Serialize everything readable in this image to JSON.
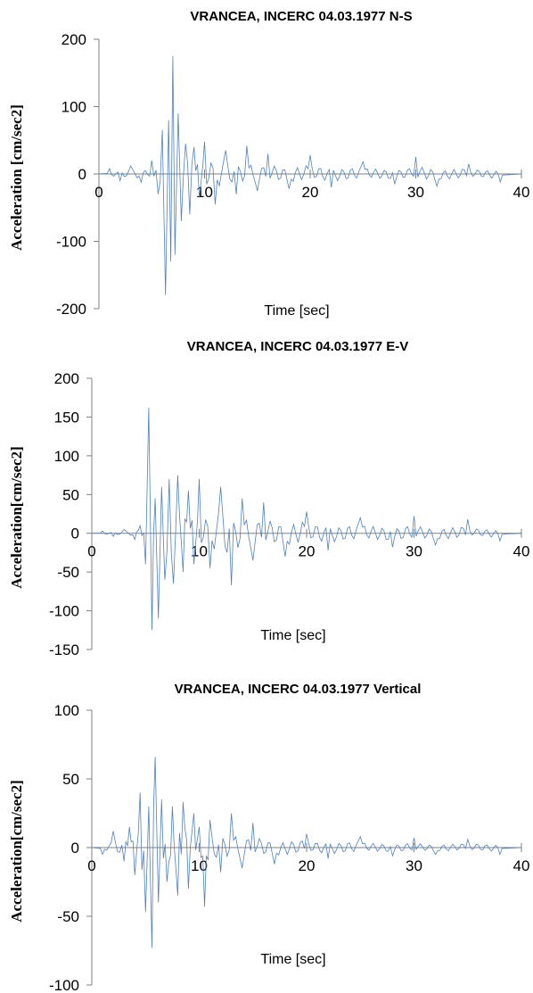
{
  "chart_data": [
    {
      "type": "line",
      "title": "VRANCEA, INCERC 04.03.1977 N-S",
      "xlabel": "Time [sec]",
      "ylabel": "Acceleration [cm/sec2]",
      "xlim": [
        0,
        40
      ],
      "ylim": [
        -200,
        200
      ],
      "xticks": [
        "0",
        "10",
        "20",
        "30",
        "40"
      ],
      "yticks": [
        "200",
        "100",
        "0",
        "-100",
        "-200"
      ],
      "series_color": "#4f81bd",
      "x": [
        0,
        1,
        2,
        3,
        4,
        5,
        5.6,
        6,
        6.3,
        6.6,
        6.8,
        7.0,
        7.2,
        7.5,
        7.8,
        8.2,
        8.6,
        9.0,
        9.5,
        10,
        11,
        12,
        13,
        14,
        15,
        16,
        18,
        20,
        22,
        25,
        28,
        30,
        32,
        35,
        38,
        40
      ],
      "y": [
        0,
        8,
        -10,
        12,
        -12,
        20,
        -30,
        65,
        -180,
        80,
        -130,
        175,
        -120,
        90,
        -70,
        45,
        -60,
        40,
        -35,
        48,
        -45,
        35,
        -30,
        42,
        -25,
        30,
        -22,
        28,
        -20,
        18,
        -15,
        25,
        -18,
        15,
        -12,
        0
      ]
    },
    {
      "type": "line",
      "title": "VRANCEA, INCERC 04.03.1977 E-V",
      "xlabel": "Time [sec]",
      "ylabel": "Acceleration[cm/sec2]",
      "xlim": [
        0,
        40
      ],
      "ylim": [
        -150,
        200
      ],
      "xticks": [
        "0",
        "10",
        "20",
        "30",
        "40"
      ],
      "yticks": [
        "200",
        "150",
        "100",
        "50",
        "0",
        "-50",
        "-100",
        "-150"
      ],
      "series_color": "#4f81bd",
      "x": [
        0,
        1,
        2,
        3,
        4,
        4.5,
        5,
        5.3,
        5.6,
        5.9,
        6.2,
        6.5,
        6.8,
        7.2,
        7.6,
        8.0,
        8.5,
        9.0,
        9.5,
        10,
        11,
        12,
        13,
        14,
        15,
        16,
        18,
        20,
        22,
        25,
        28,
        30,
        32,
        35,
        38,
        40
      ],
      "y": [
        0,
        3,
        -4,
        5,
        -8,
        10,
        -40,
        162,
        -125,
        45,
        -110,
        60,
        -60,
        70,
        -65,
        75,
        -50,
        55,
        -40,
        70,
        -45,
        60,
        -67,
        45,
        -35,
        40,
        -30,
        28,
        -22,
        20,
        -18,
        22,
        -15,
        18,
        -10,
        0
      ]
    },
    {
      "type": "line",
      "title": "VRANCEA, INCERC 04.03.1977 Vertical",
      "xlabel": "Time [sec]",
      "ylabel": "Acceleration[cm/sec2]",
      "xlim": [
        0,
        40
      ],
      "ylim": [
        -100,
        100
      ],
      "xticks": [
        "0",
        "10",
        "20",
        "30",
        "40"
      ],
      "yticks": [
        "100",
        "50",
        "0",
        "-50",
        "-100"
      ],
      "series_color": "#4f81bd",
      "x": [
        0,
        1,
        2,
        3,
        3.5,
        4,
        4.5,
        5,
        5.3,
        5.6,
        5.9,
        6.2,
        6.5,
        7.0,
        7.5,
        8.0,
        8.5,
        9.0,
        9.5,
        10,
        10.5,
        11,
        12,
        13,
        14,
        15,
        17,
        20,
        22,
        25,
        28,
        30,
        32,
        35,
        38,
        40
      ],
      "y": [
        0,
        -5,
        12,
        -10,
        15,
        -20,
        40,
        -47,
        30,
        -73,
        66,
        -40,
        35,
        -25,
        30,
        -35,
        33,
        -30,
        25,
        15,
        -43,
        20,
        -18,
        25,
        -15,
        18,
        -12,
        10,
        -8,
        8,
        -6,
        7,
        -5,
        6,
        -5,
        0
      ]
    }
  ]
}
